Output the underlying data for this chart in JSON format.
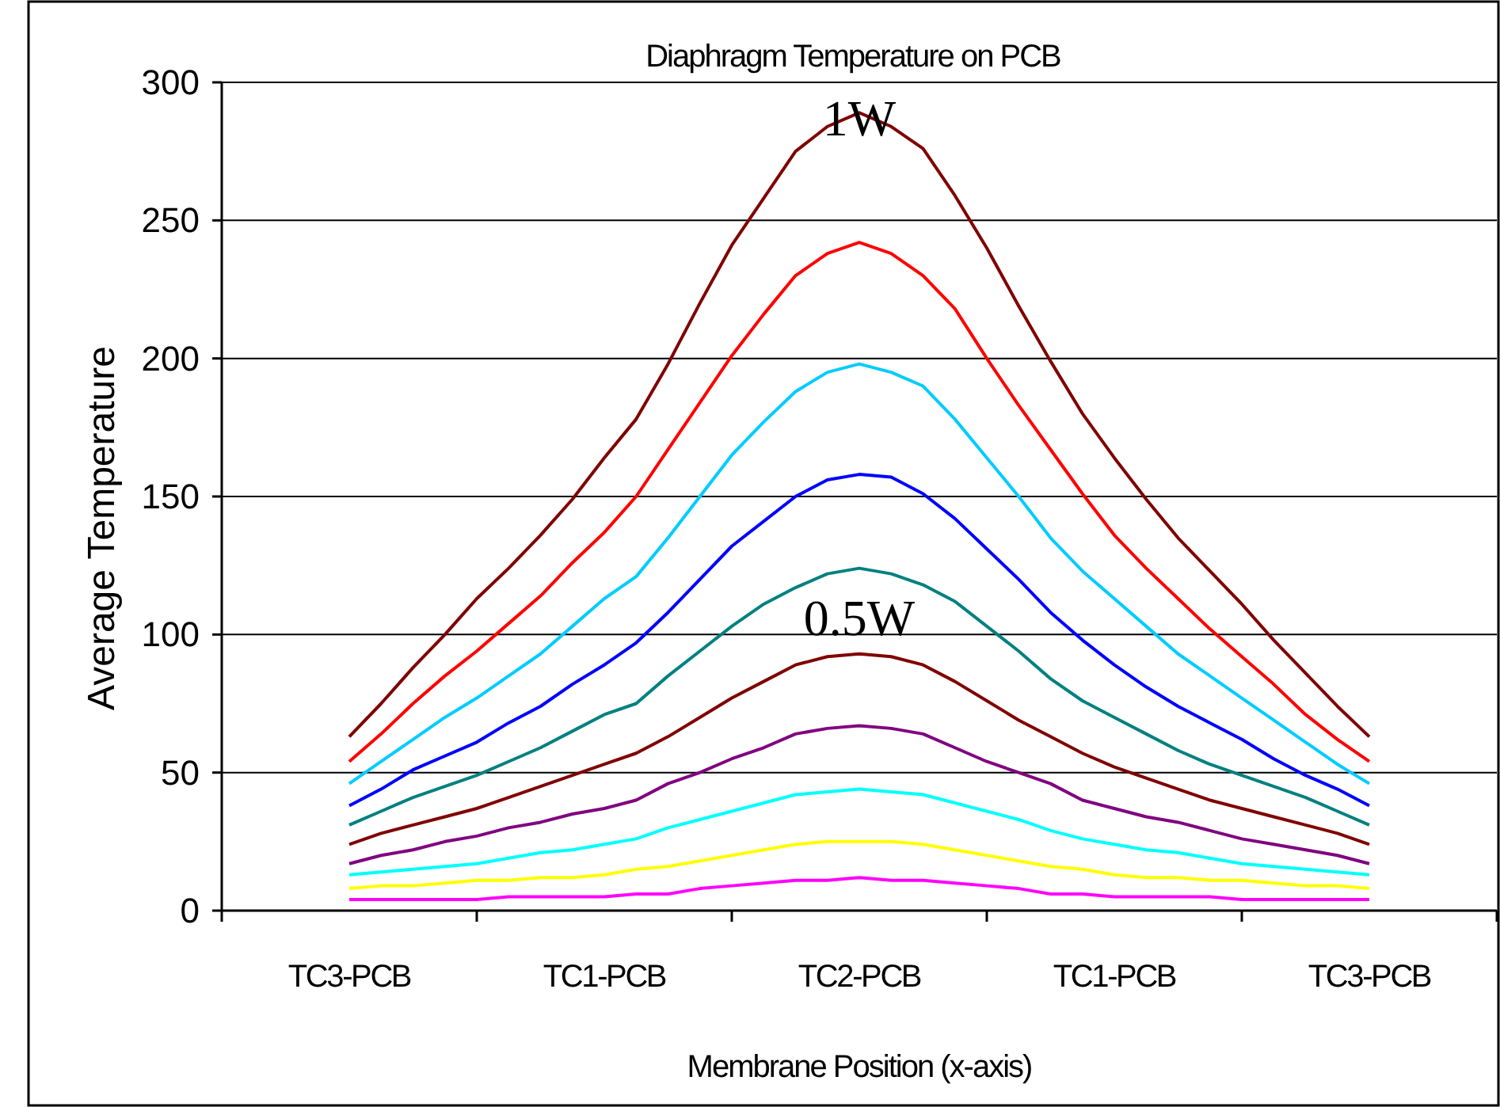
{
  "chart_data": {
    "type": "line",
    "title": "Diaphragm Temperature on PCB",
    "xlabel": "Membrane Position (x-axis)",
    "ylabel": "Average Temperature",
    "categories": [
      "TC3-PCB",
      null,
      null,
      null,
      null,
      null,
      null,
      null,
      "TC1-PCB",
      null,
      null,
      null,
      null,
      null,
      null,
      null,
      "TC2-PCB",
      null,
      null,
      null,
      null,
      null,
      null,
      null,
      "TC1-PCB",
      null,
      null,
      null,
      null,
      null,
      null,
      null,
      "TC3-PCB"
    ],
    "ylim": [
      0,
      300
    ],
    "yticks": [
      0,
      50,
      100,
      150,
      200,
      250,
      300
    ],
    "grid": "y",
    "line_style": "solid",
    "series": [
      {
        "color": "#800000",
        "values": [
          63,
          75,
          88,
          100,
          113,
          124,
          136,
          149,
          164,
          178,
          198,
          220,
          241,
          258,
          275,
          284,
          289,
          284,
          276,
          259,
          240,
          219,
          199,
          180,
          164,
          149,
          135,
          123,
          111,
          98,
          86,
          74,
          63
        ]
      },
      {
        "color": "#ff0000",
        "values": [
          54,
          64,
          75,
          85,
          94,
          104,
          114,
          126,
          137,
          150,
          167,
          184,
          201,
          216,
          230,
          238,
          242,
          238,
          230,
          218,
          200,
          183,
          167,
          151,
          136,
          124,
          113,
          102,
          92,
          82,
          71,
          62,
          54
        ]
      },
      {
        "color": "#00ccff",
        "values": [
          46,
          54,
          62,
          70,
          77,
          85,
          93,
          103,
          113,
          121,
          135,
          150,
          165,
          177,
          188,
          195,
          198,
          195,
          190,
          178,
          164,
          150,
          135,
          123,
          113,
          103,
          93,
          85,
          77,
          69,
          61,
          53,
          46
        ]
      },
      {
        "color": "#0000ff",
        "values": [
          38,
          44,
          51,
          56,
          61,
          68,
          74,
          82,
          89,
          97,
          108,
          120,
          132,
          141,
          150,
          156,
          158,
          157,
          151,
          142,
          131,
          120,
          108,
          98,
          89,
          81,
          74,
          68,
          62,
          55,
          49,
          44,
          38
        ]
      },
      {
        "color": "#008080",
        "values": [
          31,
          36,
          41,
          45,
          49,
          54,
          59,
          65,
          71,
          75,
          85,
          94,
          103,
          111,
          117,
          122,
          124,
          122,
          118,
          112,
          103,
          94,
          84,
          76,
          70,
          64,
          58,
          53,
          49,
          45,
          41,
          36,
          31
        ]
      },
      {
        "color": "#800000",
        "values": [
          24,
          28,
          31,
          34,
          37,
          41,
          45,
          49,
          53,
          57,
          63,
          70,
          77,
          83,
          89,
          92,
          93,
          92,
          89,
          83,
          76,
          69,
          63,
          57,
          52,
          48,
          44,
          40,
          37,
          34,
          31,
          28,
          24
        ]
      },
      {
        "color": "#800080",
        "values": [
          17,
          20,
          22,
          25,
          27,
          30,
          32,
          35,
          37,
          40,
          46,
          50,
          55,
          59,
          64,
          66,
          67,
          66,
          64,
          59,
          54,
          50,
          46,
          40,
          37,
          34,
          32,
          29,
          26,
          24,
          22,
          20,
          17
        ]
      },
      {
        "color": "#00ffff",
        "values": [
          13,
          14,
          15,
          16,
          17,
          19,
          21,
          22,
          24,
          26,
          30,
          33,
          36,
          39,
          42,
          43,
          44,
          43,
          42,
          39,
          36,
          33,
          29,
          26,
          24,
          22,
          21,
          19,
          17,
          16,
          15,
          14,
          13
        ]
      },
      {
        "color": "#ffff00",
        "values": [
          8,
          9,
          9,
          10,
          11,
          11,
          12,
          12,
          13,
          15,
          16,
          18,
          20,
          22,
          24,
          25,
          25,
          25,
          24,
          22,
          20,
          18,
          16,
          15,
          13,
          12,
          12,
          11,
          11,
          10,
          9,
          9,
          8
        ]
      },
      {
        "color": "#ff00ff",
        "values": [
          4,
          4,
          4,
          4,
          4,
          5,
          5,
          5,
          5,
          6,
          6,
          8,
          9,
          10,
          11,
          11,
          12,
          11,
          11,
          10,
          9,
          8,
          6,
          6,
          5,
          5,
          5,
          5,
          4,
          4,
          4,
          4,
          4
        ]
      }
    ],
    "annotations": [
      "1W",
      "0.5W"
    ]
  }
}
